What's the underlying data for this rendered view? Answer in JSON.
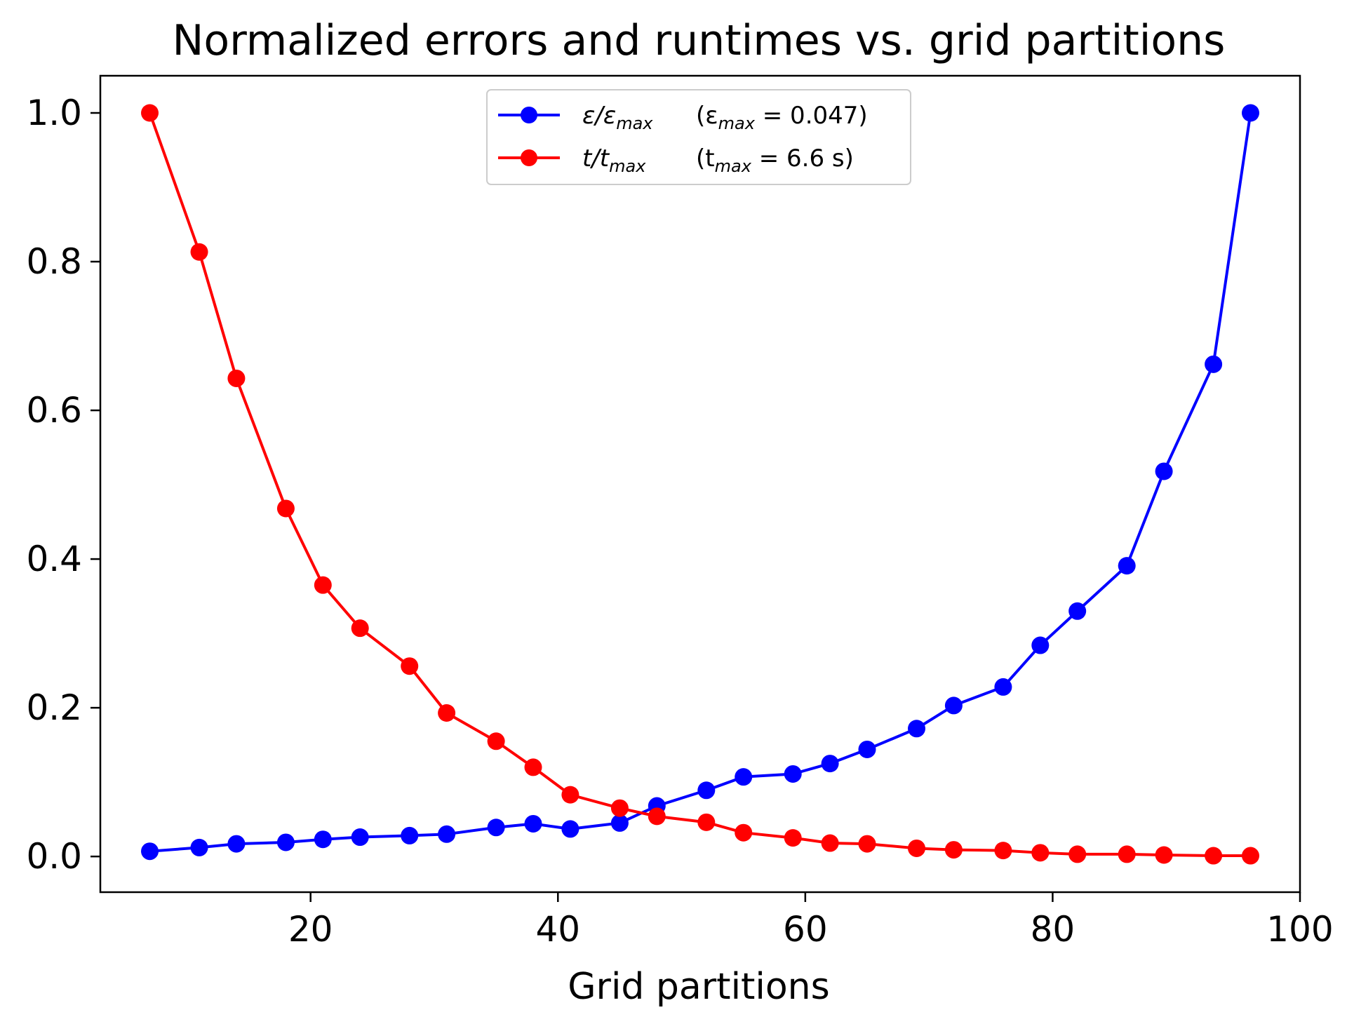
{
  "chart_data": {
    "type": "line",
    "title": "Normalized errors and runtimes vs. grid partitions",
    "xlabel": "Grid partitions",
    "ylabel": "",
    "xlim": [
      3,
      100
    ],
    "ylim": [
      -0.048,
      1.05
    ],
    "xticks": [
      20,
      40,
      60,
      80,
      100
    ],
    "yticks": [
      0.0,
      0.2,
      0.4,
      0.6,
      0.8,
      1.0
    ],
    "grid": false,
    "legend_position": "top-center",
    "x": [
      7,
      11,
      14,
      18,
      21,
      24,
      28,
      31,
      35,
      38,
      41,
      45,
      48,
      52,
      55,
      59,
      62,
      65,
      69,
      72,
      76,
      79,
      82,
      86,
      89,
      93,
      96
    ],
    "series": [
      {
        "name": "ε/εmax (εmax = 0.047)",
        "legend_parts": {
          "main": "ε/ε",
          "main_sub": "max",
          "note_open": "(ε",
          "note_sub": "max",
          "note_rest": " = 0.047)"
        },
        "color": "#0000ff",
        "values": [
          0.007,
          0.012,
          0.017,
          0.019,
          0.023,
          0.026,
          0.028,
          0.03,
          0.039,
          0.044,
          0.037,
          0.045,
          0.068,
          0.089,
          0.107,
          0.111,
          0.125,
          0.144,
          0.172,
          0.203,
          0.228,
          0.284,
          0.33,
          0.391,
          0.518,
          0.662,
          1.0
        ]
      },
      {
        "name": "t/tmax (tmax = 6.6 s)",
        "legend_parts": {
          "main": "t/t",
          "main_sub": "max",
          "note_open": "(t",
          "note_sub": "max",
          "note_rest": " = 6.6 s)"
        },
        "color": "#ff0000",
        "values": [
          1.0,
          0.813,
          0.643,
          0.468,
          0.365,
          0.307,
          0.256,
          0.193,
          0.155,
          0.12,
          0.083,
          0.065,
          0.054,
          0.046,
          0.032,
          0.025,
          0.018,
          0.017,
          0.011,
          0.009,
          0.008,
          0.005,
          0.003,
          0.003,
          0.002,
          0.001,
          0.001
        ]
      }
    ]
  }
}
